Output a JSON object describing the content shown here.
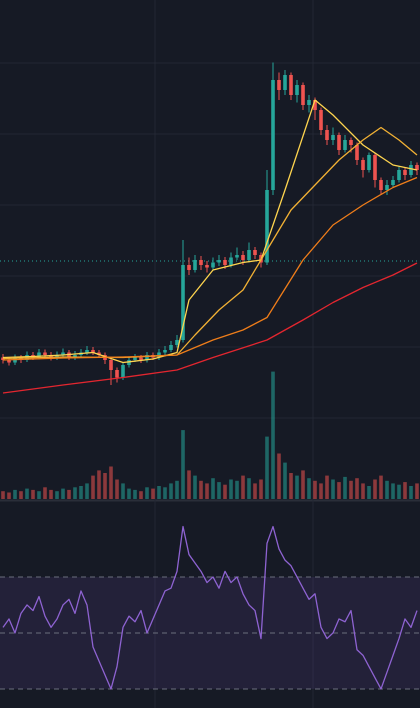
{
  "chart_data": {
    "type": "candlestick",
    "xlim": [
      -0.5,
      69.5
    ],
    "ylim": [
      0,
      100
    ],
    "up_color": "#26a69a",
    "down_color": "#ef5350",
    "xgrid": [
      25.33,
      51.67
    ],
    "ygrid": [
      87.4,
      73.2,
      59,
      44.8,
      30.6,
      16.4
    ],
    "price_line": 47.8,
    "open": [
      28.5,
      28,
      27.5,
      28.5,
      28,
      29,
      28.5,
      29.5,
      29,
      28.5,
      29,
      29.5,
      28.5,
      29,
      29.5,
      30,
      29.5,
      29,
      28,
      26,
      24.5,
      27,
      28,
      28.5,
      28,
      29,
      28.5,
      29.5,
      30,
      31,
      32,
      47,
      46,
      48,
      47,
      46.5,
      47.5,
      48,
      47,
      48.5,
      49,
      48,
      50,
      49,
      47.5,
      62,
      84,
      82,
      85,
      81,
      83,
      79,
      80,
      78,
      74,
      72,
      73,
      70,
      72,
      71,
      68,
      66,
      69,
      64,
      62,
      63,
      64,
      66,
      65,
      67
    ],
    "high": [
      29.2,
      28.6,
      29.1,
      29,
      29.7,
      29.6,
      30.2,
      30.1,
      29.6,
      29.7,
      30.3,
      30,
      29.8,
      30.2,
      30.8,
      30.6,
      30,
      29.5,
      28.4,
      26.5,
      27.6,
      28.7,
      29.2,
      29,
      29.6,
      29.5,
      30.2,
      30.8,
      31.8,
      33,
      52,
      48.5,
      49,
      48.8,
      47.8,
      48.5,
      49,
      48.6,
      49.5,
      50.5,
      49.8,
      51.5,
      50.6,
      49.5,
      66,
      87.5,
      85.5,
      86,
      85.5,
      84,
      83.5,
      81,
      80.5,
      78.5,
      75,
      74.5,
      73.5,
      73,
      72.5,
      71.5,
      68.5,
      69.5,
      69.5,
      64.5,
      64,
      64.8,
      66.8,
      66.5,
      67.8,
      67.5
    ],
    "low": [
      27.3,
      26.9,
      27,
      27.4,
      27.6,
      28,
      28.1,
      28.4,
      27.9,
      28,
      28.5,
      28,
      28,
      28.6,
      29,
      29,
      28.4,
      27.2,
      23,
      23.5,
      24,
      26.5,
      27.6,
      27.4,
      27.5,
      28,
      28,
      29,
      29.6,
      30.5,
      31.5,
      45,
      45.5,
      46,
      45.5,
      46,
      46.8,
      46.2,
      46.5,
      48,
      47,
      47.5,
      48.2,
      46.5,
      47,
      61,
      80,
      81,
      80,
      79.5,
      78,
      77.5,
      76,
      73,
      71,
      71,
      69,
      69.5,
      69.5,
      67,
      64.5,
      65.5,
      62.5,
      61,
      61,
      62.5,
      63.5,
      64,
      64.5,
      65
    ],
    "close": [
      28,
      27.5,
      28.5,
      28,
      29,
      28.5,
      29.5,
      29,
      28.5,
      29,
      29.5,
      28.5,
      29,
      29.5,
      30,
      29.5,
      29,
      28,
      26,
      24.5,
      27,
      28,
      28.5,
      28,
      29,
      28.5,
      29.5,
      30,
      31,
      32,
      47,
      46,
      48,
      47,
      46.5,
      47.5,
      48,
      47,
      48.5,
      49,
      48,
      50,
      49,
      47.5,
      62,
      84,
      82,
      85,
      81,
      83,
      79,
      80,
      78,
      74,
      72,
      73,
      70,
      72,
      71,
      68,
      66,
      69,
      64,
      62,
      63,
      64,
      66,
      65,
      67,
      66
    ],
    "volume_ylim": [
      0,
      100
    ],
    "volume": [
      6,
      5,
      7,
      6,
      8,
      7,
      6,
      9,
      7,
      6,
      8,
      7,
      9,
      10,
      12,
      18,
      22,
      20,
      25,
      15,
      12,
      8,
      7,
      6,
      9,
      8,
      10,
      9,
      12,
      14,
      53,
      22,
      18,
      14,
      12,
      16,
      13,
      11,
      15,
      14,
      18,
      16,
      12,
      15,
      48,
      98,
      35,
      28,
      20,
      18,
      22,
      16,
      14,
      12,
      18,
      15,
      13,
      17,
      14,
      16,
      12,
      10,
      15,
      18,
      14,
      12,
      11,
      13,
      10,
      12
    ],
    "moving_averages": [
      {
        "color": "#ffd54f",
        "x": [
          0,
          5,
          10,
          15,
          20,
          25,
          29,
          31,
          35,
          40,
          43,
          47,
          52,
          55,
          60,
          65,
          69
        ],
        "values": [
          28.5,
          28.7,
          29,
          29.5,
          27.5,
          28.2,
          29.5,
          40,
          46,
          47.5,
          48,
          62,
          80,
          77,
          71,
          67,
          66
        ]
      },
      {
        "color": "#f2b134",
        "x": [
          0,
          10,
          20,
          29,
          32,
          36,
          40,
          44,
          48,
          52,
          56,
          60,
          63,
          66,
          69
        ],
        "values": [
          28.3,
          28.6,
          28.5,
          29,
          33,
          38,
          42,
          50,
          58,
          63,
          68,
          72,
          74.5,
          72,
          69
        ]
      },
      {
        "color": "#ef7d1a",
        "x": [
          0,
          10,
          20,
          29,
          35,
          40,
          44,
          50,
          55,
          60,
          65,
          69
        ],
        "values": [
          28,
          28.4,
          28.6,
          29,
          32,
          34,
          36.5,
          48,
          55,
          59,
          62.5,
          64.5
        ]
      },
      {
        "color": "#e3262f",
        "x": [
          0,
          10,
          20,
          29,
          35,
          44,
          50,
          55,
          60,
          65,
          69
        ],
        "values": [
          21.4,
          23,
          24.5,
          26,
          28.5,
          32,
          36,
          39.5,
          42.5,
          45,
          47.4
        ]
      }
    ],
    "rsi": {
      "color": "#8e63d2",
      "ylim": [
        23.2,
        95.7
      ],
      "levels": [
        30,
        50,
        70
      ],
      "values": [
        52,
        55,
        50,
        57,
        60,
        58,
        63,
        56,
        52,
        55,
        60,
        62,
        57,
        65,
        60,
        45,
        40,
        35,
        30,
        38,
        52,
        56,
        54,
        58,
        50,
        55,
        60,
        65,
        66,
        72,
        88,
        78,
        75,
        72,
        68,
        70,
        66,
        72,
        68,
        70,
        64,
        60,
        58,
        48,
        82,
        88,
        80,
        76,
        74,
        70,
        66,
        62,
        64,
        52,
        48,
        50,
        55,
        54,
        58,
        44,
        42,
        38,
        34,
        30,
        36,
        42,
        48,
        55,
        52,
        58
      ]
    }
  }
}
